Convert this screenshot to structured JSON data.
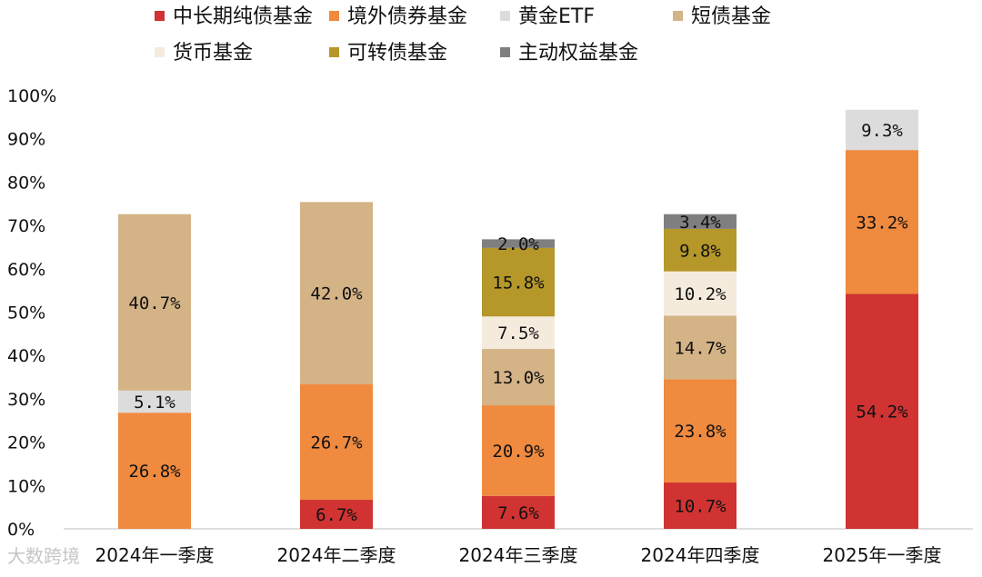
{
  "chart_data": {
    "type": "bar",
    "stacked": true,
    "title": "",
    "xlabel": "",
    "ylabel": "",
    "ylim": [
      0,
      100
    ],
    "y_ticks": [
      "0%",
      "10%",
      "20%",
      "30%",
      "40%",
      "50%",
      "60%",
      "70%",
      "80%",
      "90%",
      "100%"
    ],
    "grid": false,
    "legend_position": "top",
    "categories": [
      "2024年一季度",
      "2024年二季度",
      "2024年三季度",
      "2024年四季度",
      "2025年一季度"
    ],
    "series": [
      {
        "name": "中长期纯债基金",
        "color": "#d03332",
        "values": [
          null,
          6.7,
          7.6,
          10.7,
          54.2
        ],
        "labels": [
          "",
          "6.7%",
          "7.6%",
          "10.7%",
          "54.2%"
        ]
      },
      {
        "name": "境外债券基金",
        "color": "#ef8a3f",
        "values": [
          26.8,
          26.7,
          20.9,
          23.8,
          33.2
        ],
        "labels": [
          "26.8%",
          "26.7%",
          "20.9%",
          "23.8%",
          "33.2%"
        ]
      },
      {
        "name": "黄金ETF",
        "color": "#dcdcdc",
        "values": [
          5.1,
          null,
          null,
          null,
          9.3
        ],
        "labels": [
          "5.1%",
          "",
          "",
          "",
          "9.3%"
        ]
      },
      {
        "name": "短债基金",
        "color": "#d4b386",
        "values": [
          40.7,
          42.0,
          13.0,
          14.7,
          null
        ],
        "labels": [
          "40.7%",
          "42.0%",
          "13.0%",
          "14.7%",
          ""
        ]
      },
      {
        "name": "货币基金",
        "color": "#f5ebdd",
        "values": [
          null,
          null,
          7.5,
          10.2,
          null
        ],
        "labels": [
          "",
          "",
          "7.5%",
          "10.2%",
          ""
        ]
      },
      {
        "name": "可转债基金",
        "color": "#b5972a",
        "values": [
          null,
          null,
          15.8,
          9.8,
          null
        ],
        "labels": [
          "",
          "",
          "15.8%",
          "9.8%",
          ""
        ]
      },
      {
        "name": "主动权益基金",
        "color": "#7f7f7f",
        "values": [
          null,
          null,
          2.0,
          3.4,
          null
        ],
        "labels": [
          "",
          "",
          "2.0%",
          "3.4%",
          ""
        ]
      }
    ]
  },
  "watermark": "大数跨境"
}
